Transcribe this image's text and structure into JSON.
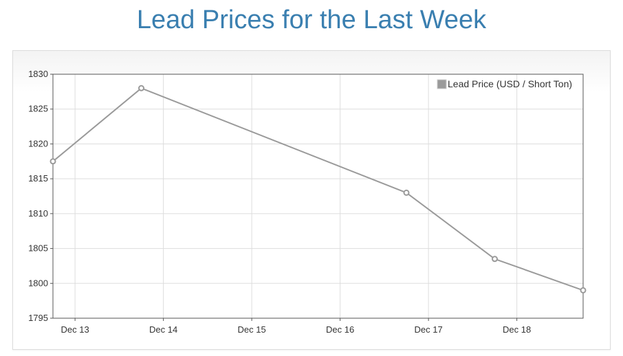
{
  "page": {
    "title": "Lead Prices for the Last Week"
  },
  "colors": {
    "title": "#3a7fb0",
    "series": "#9a9a9a",
    "grid": "#dddddd",
    "axis": "#555555"
  },
  "chart_data": {
    "type": "line",
    "title": "Lead Prices for the Last Week",
    "xlabel": "",
    "ylabel": "",
    "x_axis_type": "time",
    "x_ticks": [
      "Dec 13",
      "Dec 14",
      "Dec 15",
      "Dec 16",
      "Dec 17",
      "Dec 18"
    ],
    "xlim": [
      "Dec 12 18:00",
      "Dec 18 18:00"
    ],
    "ylim": [
      1795,
      1830
    ],
    "y_ticks": [
      1795,
      1800,
      1805,
      1810,
      1815,
      1820,
      1825,
      1830
    ],
    "grid": true,
    "legend_position": "top-right",
    "series": [
      {
        "name": "Lead Price (USD / Short Ton)",
        "color": "#9a9a9a",
        "points": [
          {
            "x": "Dec 12 18:00",
            "y": 1817.5
          },
          {
            "x": "Dec 13 18:00",
            "y": 1828
          },
          {
            "x": "Dec 16 18:00",
            "y": 1813
          },
          {
            "x": "Dec 17 18:00",
            "y": 1803.5
          },
          {
            "x": "Dec 18 18:00",
            "y": 1799
          }
        ]
      }
    ]
  }
}
